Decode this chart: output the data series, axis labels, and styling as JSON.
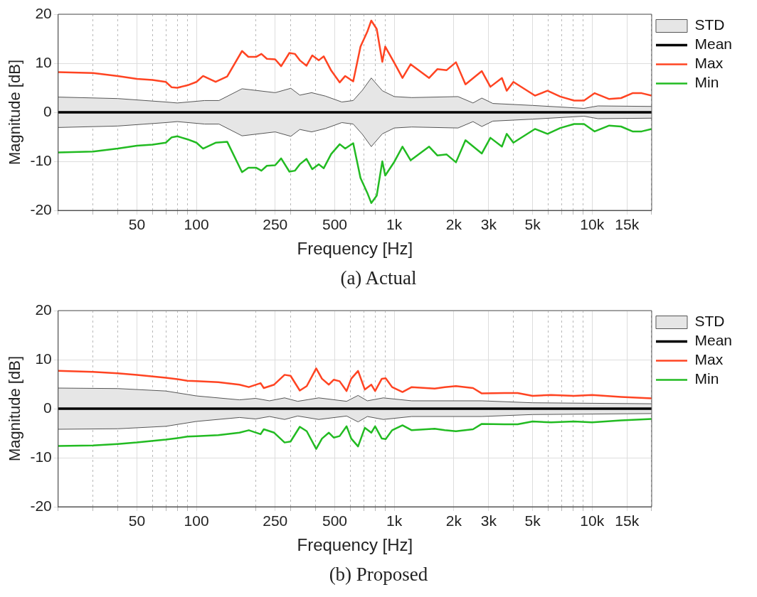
{
  "chart_data": [
    {
      "type": "line",
      "title": "(a) Actual",
      "xlabel": "Frequency [Hz]",
      "ylabel": "Magnitude [dB]",
      "log": "x",
      "grid": true,
      "legend": "top right",
      "xlim": [
        20,
        20000
      ],
      "ylim": [
        -20,
        20
      ],
      "yticks": [
        -20,
        -10,
        0,
        10,
        20
      ],
      "xticks": [
        {
          "value": 20,
          "label": null
        },
        {
          "value": 30,
          "label": null
        },
        {
          "value": 40,
          "label": null
        },
        50,
        {
          "value": 60,
          "label": null
        },
        {
          "value": 70,
          "label": null
        },
        {
          "value": 80,
          "label": null
        },
        {
          "value": 90,
          "label": null
        },
        100,
        {
          "value": 200,
          "label": null
        },
        250,
        {
          "value": 300,
          "label": null
        },
        {
          "value": 400,
          "label": null
        },
        500,
        {
          "value": 600,
          "label": null
        },
        {
          "value": 700,
          "label": null
        },
        {
          "value": 800,
          "label": null
        },
        {
          "value": 900,
          "label": null
        },
        {
          "value": 1000,
          "label": "1k"
        },
        {
          "value": 2000,
          "label": "2k"
        },
        {
          "value": 3000,
          "label": "3k"
        },
        {
          "value": 4000,
          "label": null
        },
        {
          "value": 5000,
          "label": "5k"
        },
        {
          "value": 6000,
          "label": null
        },
        {
          "value": 7000,
          "label": null
        },
        {
          "value": 8000,
          "label": null
        },
        {
          "value": 9000,
          "label": null
        },
        {
          "value": 10000,
          "label": "10k"
        },
        {
          "value": 15000,
          "label": "15k"
        },
        {
          "value": 20000,
          "label": null
        }
      ],
      "series": [
        {
          "name": "STD",
          "type": "area",
          "color": "#e6e6e6",
          "x": [
            20,
            40,
            70,
            80,
            110,
            130,
            170,
            250,
            300,
            333,
            382,
            449,
            543,
            620,
            690,
            765,
            870,
            1000,
            1225,
            2100,
            2500,
            2770,
            3150,
            5000,
            9100,
            10700,
            20000
          ],
          "values": [
            3.1,
            2.8,
            2.1,
            1.9,
            2.4,
            2.4,
            4.8,
            4.0,
            4.9,
            3.5,
            4.0,
            3.3,
            2.1,
            2.4,
            4.5,
            7.0,
            4.4,
            3.2,
            3.0,
            3.2,
            1.9,
            2.9,
            1.8,
            1.4,
            0.8,
            1.3,
            1.2
          ]
        },
        {
          "type": "area",
          "color": "#e6e6e6",
          "x": [
            20,
            40,
            70,
            80,
            110,
            130,
            170,
            250,
            300,
            333,
            382,
            449,
            543,
            620,
            690,
            765,
            870,
            1000,
            1225,
            2100,
            2500,
            2770,
            3150,
            5000,
            9100,
            10700,
            20000
          ],
          "values": [
            -3.1,
            -2.8,
            -2.1,
            -1.9,
            -2.4,
            -2.4,
            -4.8,
            -4.0,
            -4.9,
            -3.5,
            -4.0,
            -3.3,
            -2.1,
            -2.4,
            -4.5,
            -7.0,
            -4.4,
            -3.2,
            -3.0,
            -3.2,
            -1.9,
            -2.9,
            -1.8,
            -1.4,
            -0.8,
            -1.3,
            -1.2
          ]
        },
        {
          "name": "Mean",
          "type": "line",
          "color": "#000000",
          "x": [
            20,
            20000
          ],
          "values": [
            0,
            0
          ]
        },
        {
          "name": "Max",
          "type": "line",
          "color": "#ff4422",
          "x": [
            20,
            30,
            40,
            50,
            60,
            70,
            75,
            80,
            90,
            100,
            108,
            125,
            143,
            170,
            183,
            200,
            213,
            227,
            250,
            268,
            295,
            315,
            333,
            360,
            385,
            415,
            440,
            480,
            530,
            565,
            620,
            675,
            730,
            765,
            815,
            870,
            900,
            1000,
            1100,
            1210,
            1500,
            1650,
            1840,
            2050,
            2290,
            2770,
            3060,
            3500,
            3700,
            4000,
            5140,
            5950,
            6900,
            8100,
            9100,
            10300,
            12200,
            14000,
            16000,
            17800,
            20000
          ],
          "values": [
            8.2,
            8.0,
            7.4,
            6.8,
            6.6,
            6.2,
            5.1,
            5.0,
            5.5,
            6.2,
            7.4,
            6.2,
            7.3,
            12.5,
            11.3,
            11.3,
            11.9,
            10.9,
            10.8,
            9.4,
            12.1,
            11.9,
            10.6,
            9.5,
            11.6,
            10.6,
            11.4,
            8.5,
            6.1,
            7.4,
            6.3,
            13.4,
            16.4,
            18.7,
            17.0,
            10.3,
            13.4,
            10.1,
            7.0,
            9.8,
            7.0,
            8.8,
            8.6,
            10.2,
            5.7,
            8.4,
            5.2,
            7.0,
            4.4,
            6.2,
            3.4,
            4.4,
            3.2,
            2.4,
            2.4,
            3.9,
            2.7,
            2.9,
            3.9,
            3.9,
            3.4
          ]
        },
        {
          "name": "Min",
          "type": "line",
          "color": "#22bb22",
          "x": [
            20,
            30,
            40,
            50,
            60,
            70,
            75,
            80,
            90,
            100,
            108,
            125,
            143,
            170,
            183,
            200,
            213,
            227,
            250,
            268,
            295,
            315,
            333,
            360,
            385,
            415,
            440,
            480,
            530,
            565,
            620,
            675,
            730,
            765,
            815,
            870,
            900,
            1000,
            1100,
            1210,
            1500,
            1650,
            1840,
            2050,
            2290,
            2770,
            3060,
            3500,
            3700,
            4000,
            5140,
            5950,
            6900,
            8100,
            9100,
            10300,
            12200,
            14000,
            16000,
            17800,
            20000
          ],
          "values": [
            -8.2,
            -8.0,
            -7.4,
            -6.8,
            -6.6,
            -6.2,
            -5.1,
            -4.9,
            -5.5,
            -6.2,
            -7.4,
            -6.2,
            -6.0,
            -12.2,
            -11.3,
            -11.3,
            -11.9,
            -10.9,
            -10.8,
            -9.4,
            -12.1,
            -11.9,
            -10.6,
            -9.5,
            -11.6,
            -10.6,
            -11.4,
            -8.5,
            -6.5,
            -7.4,
            -6.3,
            -13.4,
            -16.4,
            -18.5,
            -17.0,
            -10.0,
            -12.9,
            -10.1,
            -7.0,
            -9.8,
            -7.0,
            -8.8,
            -8.6,
            -10.2,
            -5.7,
            -8.4,
            -5.2,
            -7.0,
            -4.4,
            -6.2,
            -3.4,
            -4.4,
            -3.2,
            -2.4,
            -2.4,
            -3.9,
            -2.7,
            -2.9,
            -3.9,
            -3.9,
            -3.4
          ]
        }
      ]
    },
    {
      "type": "line",
      "title": "(b) Proposed",
      "xlabel": "Frequency [Hz]",
      "ylabel": "Magnitude [dB]",
      "log": "x",
      "grid": true,
      "legend": "top right",
      "xlim": [
        20,
        20000
      ],
      "ylim": [
        -20,
        20
      ],
      "yticks": [
        -20,
        -10,
        0,
        10,
        20
      ],
      "xticks": [
        {
          "value": 20,
          "label": null
        },
        {
          "value": 30,
          "label": null
        },
        {
          "value": 40,
          "label": null
        },
        50,
        {
          "value": 60,
          "label": null
        },
        {
          "value": 70,
          "label": null
        },
        {
          "value": 80,
          "label": null
        },
        {
          "value": 90,
          "label": null
        },
        100,
        {
          "value": 200,
          "label": null
        },
        250,
        {
          "value": 300,
          "label": null
        },
        {
          "value": 400,
          "label": null
        },
        500,
        {
          "value": 600,
          "label": null
        },
        {
          "value": 700,
          "label": null
        },
        {
          "value": 800,
          "label": null
        },
        {
          "value": 900,
          "label": null
        },
        {
          "value": 1000,
          "label": "1k"
        },
        {
          "value": 2000,
          "label": "2k"
        },
        {
          "value": 3000,
          "label": "3k"
        },
        {
          "value": 4000,
          "label": null
        },
        {
          "value": 5000,
          "label": "5k"
        },
        {
          "value": 6000,
          "label": null
        },
        {
          "value": 7000,
          "label": null
        },
        {
          "value": 8000,
          "label": null
        },
        {
          "value": 9000,
          "label": null
        },
        {
          "value": 10000,
          "label": "10k"
        },
        {
          "value": 15000,
          "label": "15k"
        },
        {
          "value": 20000,
          "label": null
        }
      ],
      "series": [
        {
          "name": "STD",
          "type": "area",
          "color": "#e6e6e6",
          "x": [
            20,
            40,
            70,
            100,
            165,
            199,
            234,
            279,
            325,
            415,
            574,
            656,
            731,
            880,
            1225,
            2770,
            5000,
            20000
          ],
          "values": [
            4.2,
            4.1,
            3.6,
            2.6,
            1.8,
            2.1,
            1.6,
            2.2,
            1.5,
            2.2,
            1.5,
            2.7,
            1.6,
            2.2,
            1.6,
            1.6,
            1.2,
            1.0
          ]
        },
        {
          "type": "area",
          "color": "#e6e6e6",
          "x": [
            20,
            40,
            70,
            100,
            165,
            199,
            234,
            279,
            325,
            415,
            574,
            656,
            731,
            880,
            1225,
            2770,
            5000,
            20000
          ],
          "values": [
            -4.2,
            -4.1,
            -3.6,
            -2.6,
            -1.8,
            -2.1,
            -1.6,
            -2.2,
            -1.5,
            -2.2,
            -1.5,
            -2.7,
            -1.6,
            -2.2,
            -1.6,
            -1.6,
            -1.2,
            -1.0
          ]
        },
        {
          "name": "Mean",
          "type": "line",
          "color": "#000000",
          "x": [
            20,
            20000
          ],
          "values": [
            0,
            0
          ]
        },
        {
          "name": "Max",
          "type": "line",
          "color": "#ff4422",
          "x": [
            20,
            30,
            40,
            50,
            70,
            80,
            90,
            100,
            129,
            165,
            184,
            211,
            219,
            247,
            279,
            299,
            333,
            361,
            403,
            431,
            467,
            494,
            529,
            574,
            606,
            656,
            710,
            765,
            800,
            865,
            905,
            975,
            1100,
            1225,
            1600,
            1800,
            2050,
            2500,
            2770,
            3600,
            4200,
            5000,
            6200,
            8100,
            10000,
            14000,
            20000
          ],
          "values": [
            7.7,
            7.5,
            7.2,
            6.9,
            6.3,
            6.0,
            5.7,
            5.6,
            5.4,
            4.9,
            4.4,
            5.2,
            4.2,
            4.9,
            6.9,
            6.7,
            3.7,
            4.6,
            8.2,
            6.1,
            4.9,
            5.9,
            5.6,
            3.6,
            6.1,
            7.7,
            3.9,
            4.9,
            3.6,
            6.1,
            6.2,
            4.4,
            3.4,
            4.4,
            4.1,
            4.4,
            4.6,
            4.2,
            3.1,
            3.2,
            3.2,
            2.6,
            2.8,
            2.6,
            2.8,
            2.4,
            2.1
          ]
        },
        {
          "name": "Min",
          "type": "line",
          "color": "#22bb22",
          "x": [
            20,
            30,
            40,
            50,
            70,
            80,
            90,
            100,
            129,
            165,
            184,
            211,
            219,
            247,
            279,
            299,
            333,
            361,
            403,
            431,
            467,
            494,
            529,
            574,
            606,
            656,
            710,
            765,
            800,
            865,
            905,
            975,
            1100,
            1225,
            1600,
            1800,
            2050,
            2500,
            2770,
            3600,
            4200,
            5000,
            6200,
            8100,
            10000,
            14000,
            20000
          ],
          "values": [
            -7.6,
            -7.5,
            -7.2,
            -6.9,
            -6.3,
            -6.0,
            -5.7,
            -5.6,
            -5.4,
            -4.9,
            -4.4,
            -5.2,
            -4.2,
            -4.9,
            -6.9,
            -6.7,
            -3.7,
            -4.6,
            -8.2,
            -6.1,
            -4.9,
            -5.9,
            -5.6,
            -3.6,
            -6.1,
            -7.7,
            -3.9,
            -4.9,
            -3.6,
            -6.1,
            -6.2,
            -4.4,
            -3.4,
            -4.4,
            -4.1,
            -4.4,
            -4.6,
            -4.2,
            -3.1,
            -3.2,
            -3.2,
            -2.6,
            -2.8,
            -2.6,
            -2.8,
            -2.4,
            -2.1
          ]
        }
      ]
    }
  ]
}
